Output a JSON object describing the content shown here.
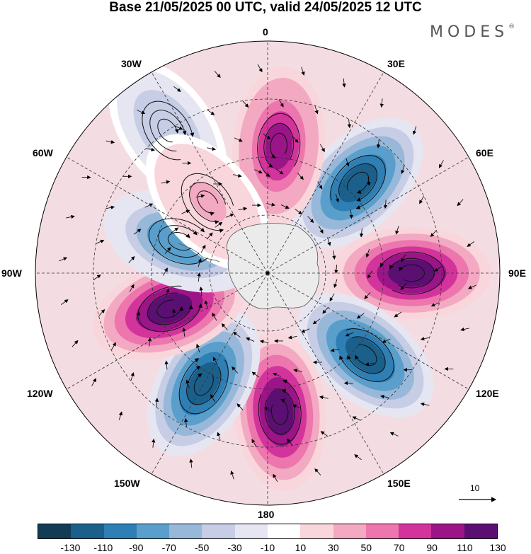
{
  "title": "Base 21/05/2025 00 UTC, valid 24/05/2025 12 UTC",
  "brand": "MODES",
  "brand_mark": "®",
  "longitude_labels": {
    "0": "0",
    "30E": "30E",
    "60E": "60E",
    "90E": "90E",
    "120E": "120E",
    "150E": "150E",
    "180": "180",
    "150W": "150W",
    "120W": "120W",
    "90W": "90W",
    "60W": "60W",
    "30W": "30W"
  },
  "reference_vector": "10",
  "colorbar": {
    "colors": [
      "#123c55",
      "#1b5f8b",
      "#2f7fb5",
      "#5a9fcc",
      "#98b8da",
      "#c6cde5",
      "#e6e6f2",
      "#ffffff",
      "#f8d6dc",
      "#f2a9c1",
      "#ec76ad",
      "#d2349c",
      "#9b1488",
      "#5b0f72"
    ],
    "tick_labels": [
      "-130",
      "-110",
      "-90",
      "-70",
      "-50",
      "-30",
      "-10",
      "10",
      "30",
      "50",
      "70",
      "90",
      "110",
      "130"
    ]
  },
  "anomaly_centers": [
    {
      "sign": "negative",
      "value": -130,
      "lon": 45,
      "colat_frac": 0.55
    },
    {
      "sign": "positive",
      "value": 130,
      "lon": 90,
      "colat_frac": 0.62
    },
    {
      "sign": "negative",
      "value": -130,
      "lon": 130,
      "colat_frac": 0.55
    },
    {
      "sign": "positive",
      "value": 130,
      "lon": 175,
      "colat_frac": 0.6
    },
    {
      "sign": "negative",
      "value": -130,
      "lon": -150,
      "colat_frac": 0.55
    },
    {
      "sign": "positive",
      "value": 110,
      "lon": -110,
      "colat_frac": 0.45
    },
    {
      "sign": "negative",
      "value": -90,
      "lon": -70,
      "colat_frac": 0.4
    },
    {
      "sign": "positive",
      "value": 90,
      "lon": 5,
      "colat_frac": 0.55
    },
    {
      "sign": "negative",
      "value": -50,
      "lon": -35,
      "colat_frac": 0.75
    },
    {
      "sign": "positive",
      "value": 30,
      "lon": -40,
      "colat_frac": 0.4
    }
  ]
}
